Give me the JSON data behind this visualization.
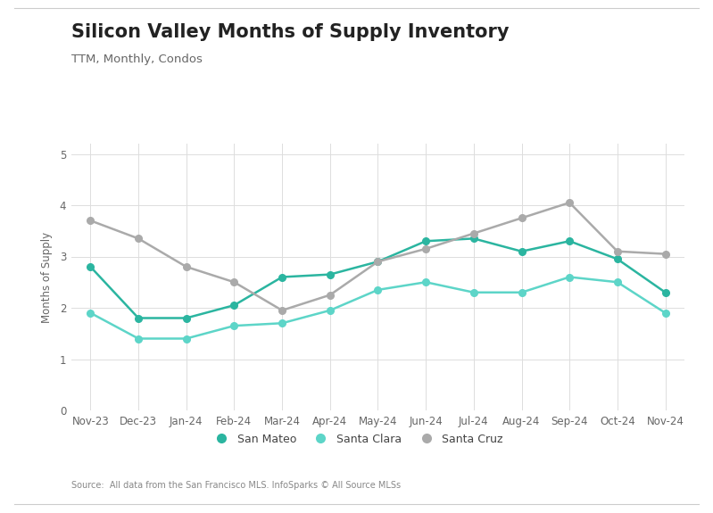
{
  "title": "Silicon Valley Months of Supply Inventory",
  "subtitle": "TTM, Monthly, Condos",
  "ylabel": "Months of Supply",
  "source": "Source:  All data from the San Francisco MLS. InfoSparks © All Source MLSs",
  "x_labels": [
    "Nov-23",
    "Dec-23",
    "Jan-24",
    "Feb-24",
    "Mar-24",
    "Apr-24",
    "May-24",
    "Jun-24",
    "Jul-24",
    "Aug-24",
    "Sep-24",
    "Oct-24",
    "Nov-24"
  ],
  "san_mateo": [
    2.8,
    1.8,
    1.8,
    2.05,
    2.6,
    2.65,
    2.9,
    3.3,
    3.35,
    3.1,
    3.3,
    2.95,
    2.3
  ],
  "santa_clara": [
    1.9,
    1.4,
    1.4,
    1.65,
    1.7,
    1.95,
    2.35,
    2.5,
    2.3,
    2.3,
    2.6,
    2.5,
    1.9
  ],
  "santa_cruz": [
    3.7,
    3.35,
    2.8,
    2.5,
    1.95,
    2.25,
    2.9,
    3.15,
    3.45,
    3.75,
    4.05,
    3.1,
    3.05
  ],
  "san_mateo_color": "#2bb5a0",
  "santa_clara_color": "#5dd5c8",
  "santa_cruz_color": "#aaaaaa",
  "ylim": [
    0,
    5.2
  ],
  "yticks": [
    0,
    1,
    2,
    3,
    4,
    5
  ],
  "background_color": "#ffffff",
  "grid_color": "#dddddd",
  "title_fontsize": 15,
  "subtitle_fontsize": 9.5,
  "axis_label_fontsize": 8.5,
  "tick_fontsize": 8.5,
  "legend_fontsize": 9,
  "source_fontsize": 7
}
